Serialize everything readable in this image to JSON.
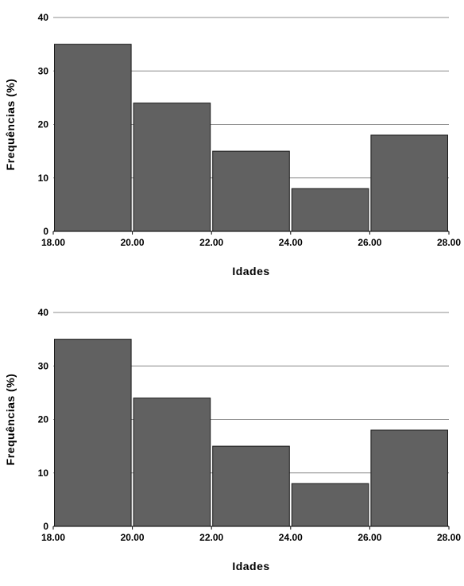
{
  "chart_data": [
    {
      "type": "bar",
      "histogram": true,
      "bin_edges": [
        "18.00",
        "20.00",
        "22.00",
        "24.00",
        "26.00",
        "28.00"
      ],
      "values": [
        35,
        24,
        15,
        8,
        18
      ],
      "xlabel": "Idades",
      "ylabel": "Frequências (%)",
      "yticks": [
        "0",
        "10",
        "20",
        "30",
        "40"
      ],
      "ylim": [
        0,
        40
      ],
      "xlim": [
        18,
        28
      ],
      "grid": true,
      "bar_color": "#616161",
      "bar_edge_color": "#1a1a1a"
    },
    {
      "type": "bar",
      "histogram": true,
      "bin_edges": [
        "18.00",
        "20.00",
        "22.00",
        "24.00",
        "26.00",
        "28.00"
      ],
      "values": [
        35,
        24,
        15,
        8,
        18
      ],
      "xlabel": "Idades",
      "ylabel": "Frequências (%)",
      "yticks": [
        "0",
        "10",
        "20",
        "30",
        "40"
      ],
      "ylim": [
        0,
        40
      ],
      "xlim": [
        18,
        28
      ],
      "grid": true,
      "bar_color": "#616161",
      "bar_edge_color": "#1a1a1a"
    }
  ]
}
